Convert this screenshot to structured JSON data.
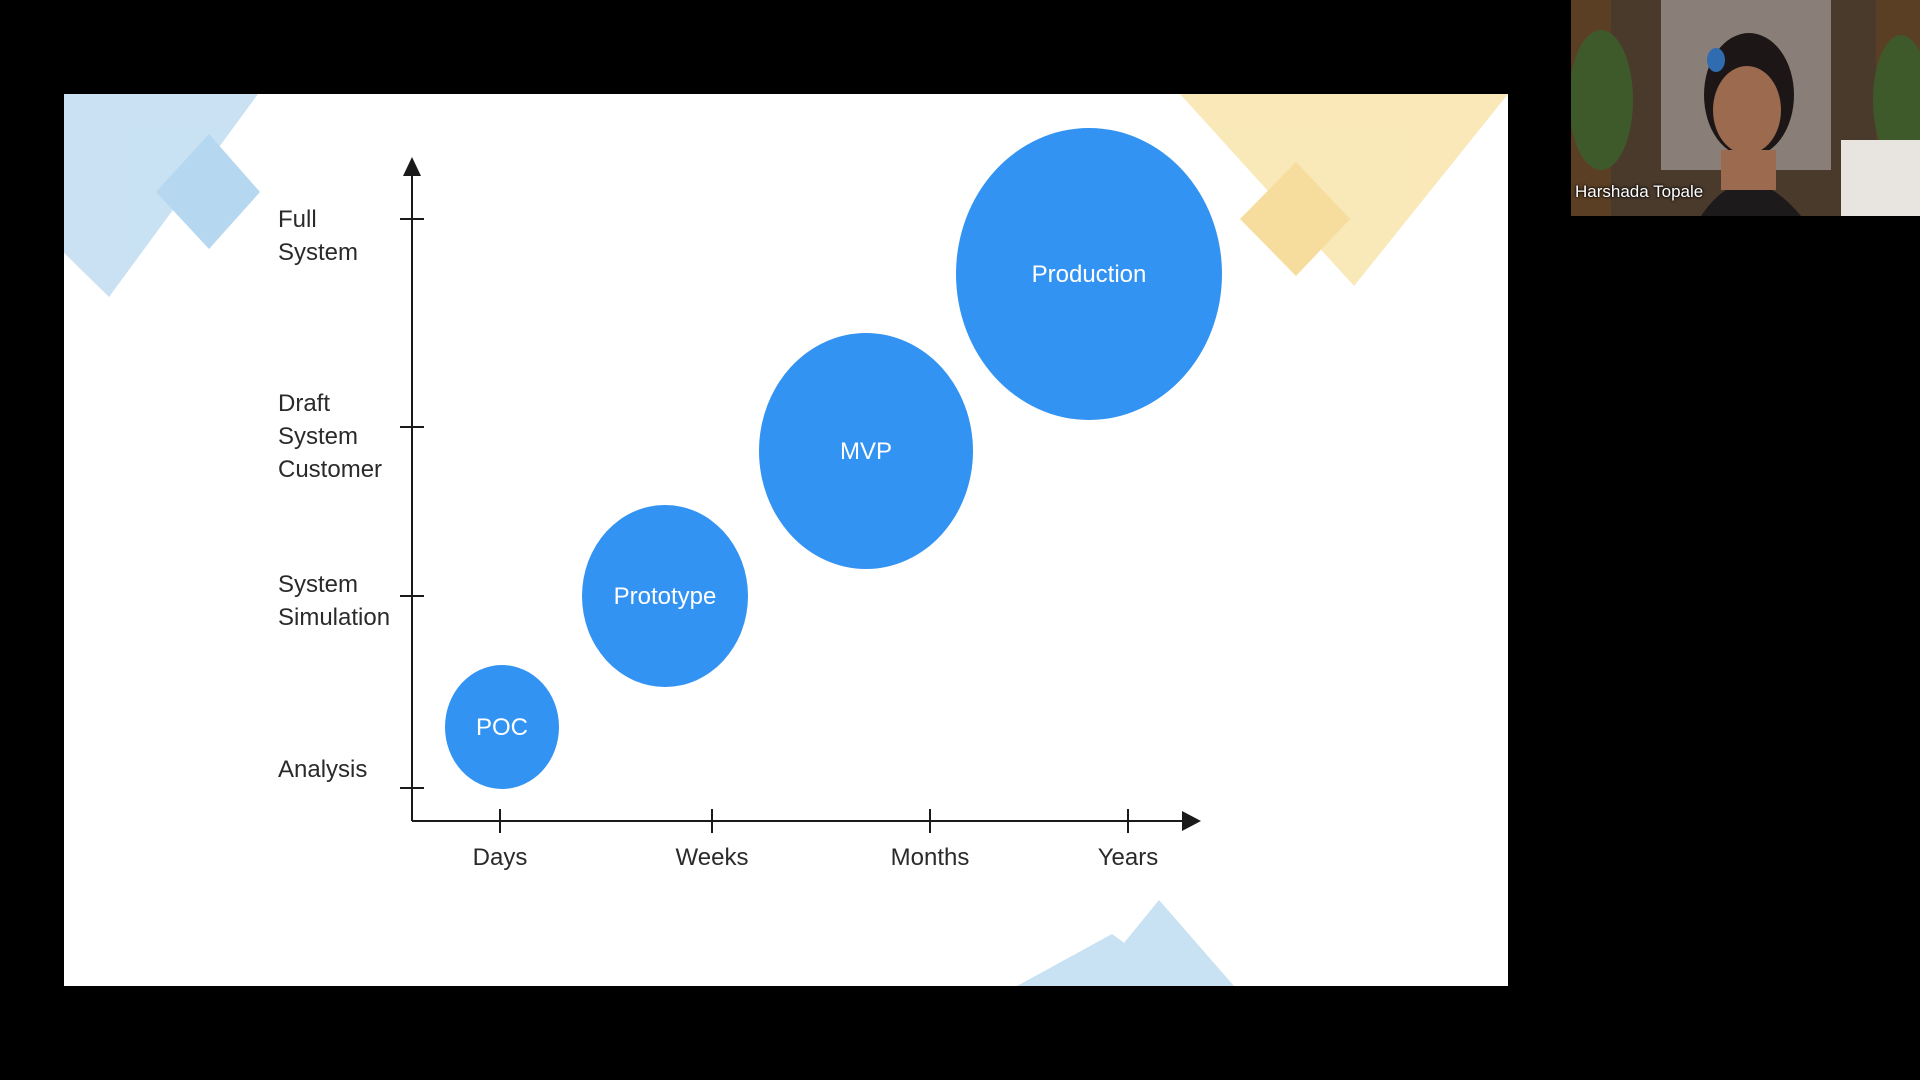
{
  "slide": {
    "y_axis_levels": [
      "Analysis",
      "System\nSimulation",
      "Draft\nSystem\nCustomer",
      "Full\nSystem"
    ],
    "x_axis_levels": [
      "Days",
      "Weeks",
      "Months",
      "Years"
    ],
    "stages": [
      {
        "label": "POC",
        "x_level": 0,
        "y_level": 0.5
      },
      {
        "label": "Prototype",
        "x_level": 1,
        "y_level": 1
      },
      {
        "label": "MVP",
        "x_level": 2,
        "y_level": 2
      },
      {
        "label": "Production",
        "x_level": 3,
        "y_level": 3
      }
    ],
    "colors": {
      "bubble": "#3393f2",
      "accent_blue": "#9cc9ea",
      "accent_yellow": "#f6d98a"
    }
  },
  "video_tile": {
    "participant_name": "Harshada Topale"
  }
}
